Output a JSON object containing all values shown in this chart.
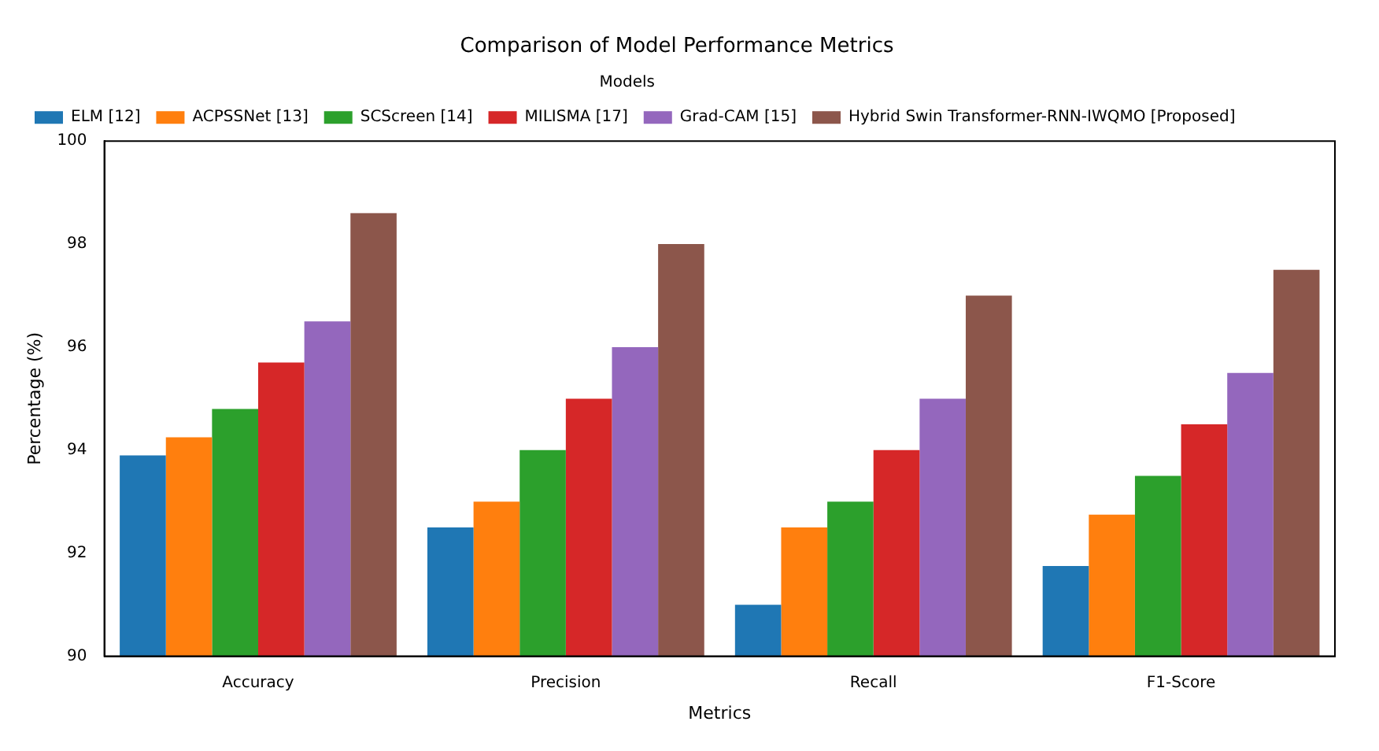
{
  "chart_data": {
    "type": "bar",
    "title": "Comparison of Model Performance Metrics",
    "xlabel": "Metrics",
    "ylabel": "Percentage (%)",
    "legend_title": "Models",
    "legend": "top left",
    "grid": false,
    "categories": [
      "Accuracy",
      "Precision",
      "Recall",
      "F1-Score"
    ],
    "ylim": [
      90,
      100
    ],
    "yticks": [
      90,
      92,
      94,
      96,
      98,
      100
    ],
    "series": [
      {
        "name": "ELM [12]",
        "color": "#1f77b4",
        "values": [
          93.9,
          92.5,
          91,
          91.75
        ]
      },
      {
        "name": "ACPSSNet [13]",
        "color": "#ff7f0e",
        "values": [
          94.25,
          93,
          92.5,
          92.75
        ]
      },
      {
        "name": "SCScreen [14]",
        "color": "#2ca02c",
        "values": [
          94.8,
          94,
          93,
          93.5
        ]
      },
      {
        "name": "MILISMA [17]",
        "color": "#d62728",
        "values": [
          95.7,
          95,
          94,
          94.5
        ]
      },
      {
        "name": "Grad-CAM [15]",
        "color": "#9467bd",
        "values": [
          96.5,
          96,
          95,
          95.5
        ]
      },
      {
        "name": "Hybrid Swin Transformer-RNN-IWQMO [Proposed]",
        "color": "#8c564b",
        "values": [
          98.6,
          98,
          97,
          97.5
        ]
      }
    ]
  }
}
